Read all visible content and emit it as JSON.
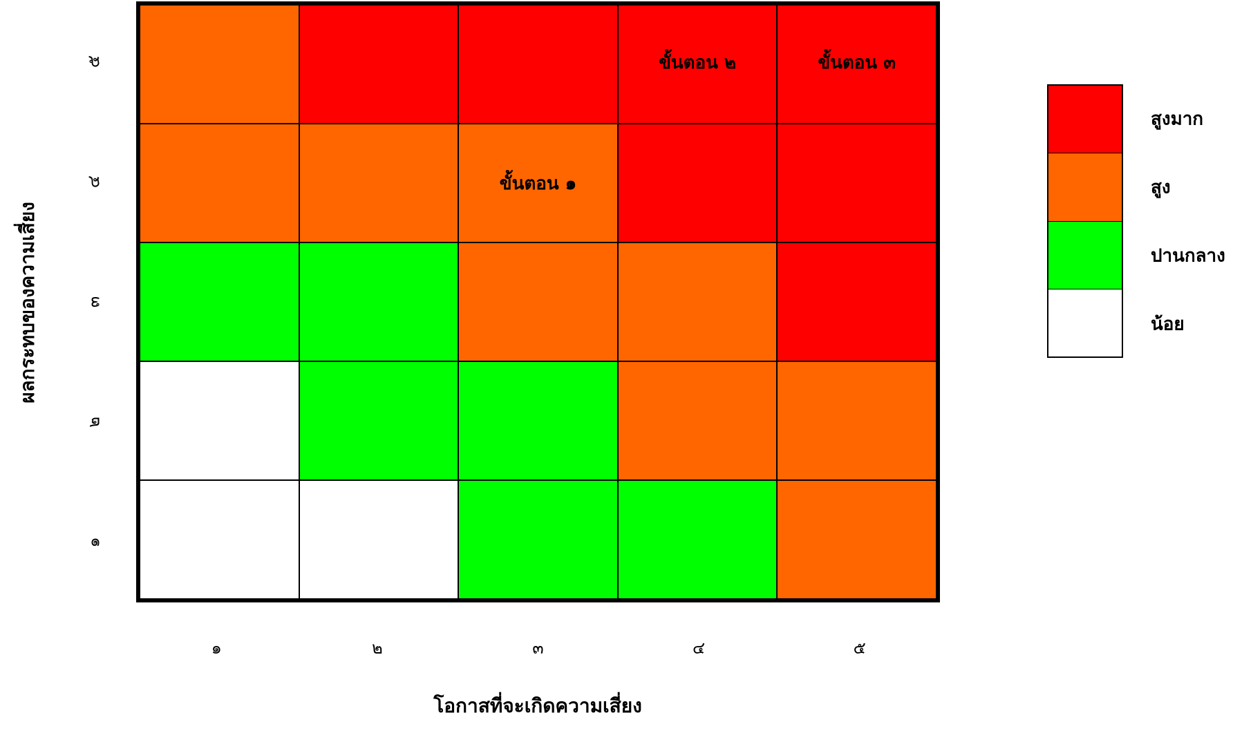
{
  "chart_data": {
    "type": "heatmap",
    "xlabel": "โอกาสที่จะเกิดความเสี่ยง",
    "ylabel": "ผลกระทบของความเสี่ยง",
    "x_ticks": [
      "๑",
      "๒",
      "๓",
      "๔",
      "๕"
    ],
    "y_ticks": [
      "๕",
      "๔",
      "๓",
      "๒",
      "๑"
    ],
    "levels": [
      {
        "key": "very_high",
        "label": "สูงมาก",
        "color": "#ff0000"
      },
      {
        "key": "high",
        "label": "สูง",
        "color": "#ff6600"
      },
      {
        "key": "medium",
        "label": "ปานกลาง",
        "color": "#00ff00"
      },
      {
        "key": "low",
        "label": "น้อย",
        "color": "#ffffff"
      }
    ],
    "grid": [
      [
        "high",
        "very_high",
        "very_high",
        "very_high",
        "very_high"
      ],
      [
        "high",
        "high",
        "high",
        "very_high",
        "very_high"
      ],
      [
        "medium",
        "medium",
        "high",
        "high",
        "very_high"
      ],
      [
        "low",
        "medium",
        "medium",
        "high",
        "high"
      ],
      [
        "low",
        "low",
        "medium",
        "medium",
        "high"
      ]
    ],
    "annotations": [
      {
        "row": 0,
        "col": 3,
        "text": "ขั้นตอน ๒"
      },
      {
        "row": 0,
        "col": 4,
        "text": "ขั้นตอน ๓"
      },
      {
        "row": 1,
        "col": 2,
        "text": "ขั้นตอน ๑"
      }
    ]
  }
}
